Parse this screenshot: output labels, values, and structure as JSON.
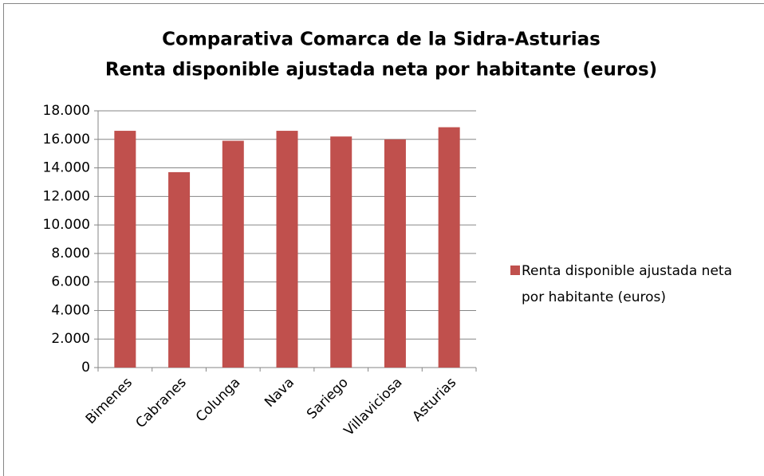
{
  "chart_data": {
    "type": "bar",
    "title": "Comparativa Comarca de la Sidra-Asturias",
    "subtitle": "Renta disponible ajustada neta por habitante (euros)",
    "categories": [
      "Bimenes",
      "Cabranes",
      "Colunga",
      "Nava",
      "Sariego",
      "Villaviciosa",
      "Asturias"
    ],
    "series": [
      {
        "name": "Renta disponible ajustada neta por habitante (euros)",
        "color": "#c0504d",
        "values": [
          16600,
          13700,
          15900,
          16600,
          16200,
          16000,
          16850
        ]
      }
    ],
    "ylim": [
      0,
      18000
    ],
    "yticks": [
      0,
      {
        "value": 2000,
        "label": "2.000"
      },
      {
        "value": 4000,
        "label": "4.000"
      },
      {
        "value": 6000,
        "label": "6.000"
      },
      {
        "value": 8000,
        "label": "8.000"
      },
      {
        "value": 10000,
        "label": "10.000"
      },
      {
        "value": 12000,
        "label": "12.000"
      },
      {
        "value": 14000,
        "label": "14.000"
      },
      {
        "value": 16000,
        "label": "16.000"
      },
      {
        "value": 18000,
        "label": "18.000"
      }
    ],
    "grid": true,
    "legend": "right"
  }
}
